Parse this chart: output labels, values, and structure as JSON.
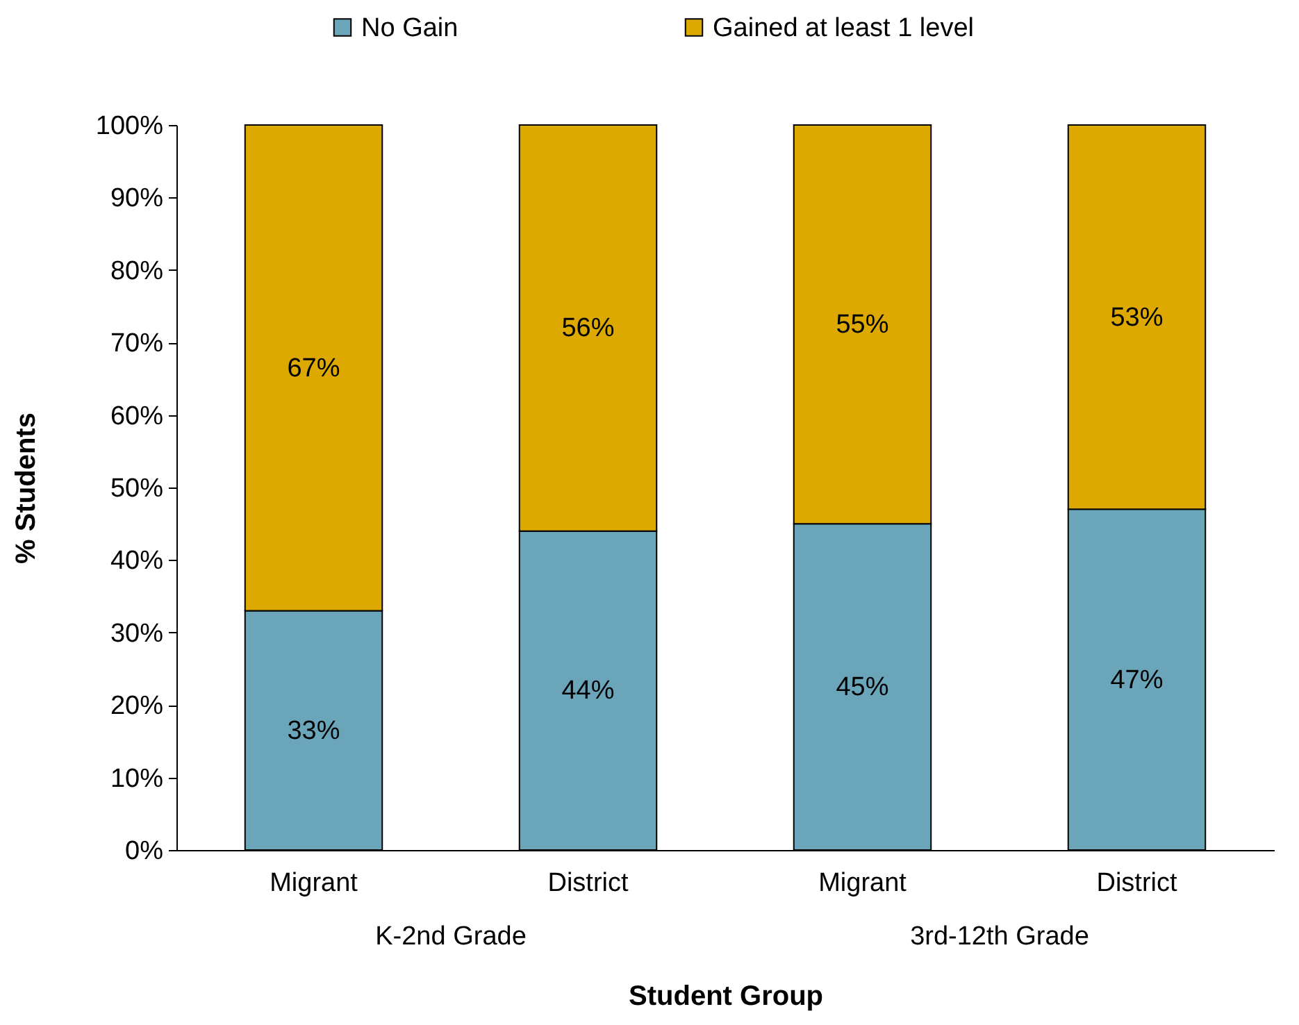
{
  "chart_data": {
    "type": "bar",
    "stacked": true,
    "xlabel": "Student Group",
    "ylabel": "%  Students",
    "categories": [
      "Migrant",
      "District",
      "Migrant",
      "District"
    ],
    "series": [
      {
        "name": "No Gain",
        "color": "#6aa5ba",
        "values": [
          33,
          44,
          45,
          47
        ],
        "value_labels": [
          "33%",
          "44%",
          "45%",
          "47%"
        ]
      },
      {
        "name": "Gained at least 1 level",
        "color": "#dda900",
        "values": [
          67,
          56,
          55,
          53
        ],
        "value_labels": [
          "67%",
          "56%",
          "55%",
          "53%"
        ]
      }
    ],
    "ylim": [
      0,
      100
    ],
    "yticks": [
      {
        "value": 0,
        "label": "0%"
      },
      {
        "value": 10,
        "label": "10%"
      },
      {
        "value": 20,
        "label": "20%"
      },
      {
        "value": 30,
        "label": "30%"
      },
      {
        "value": 40,
        "label": "40%"
      },
      {
        "value": 50,
        "label": "50%"
      },
      {
        "value": 60,
        "label": "60%"
      },
      {
        "value": 70,
        "label": "70%"
      },
      {
        "value": 80,
        "label": "80%"
      },
      {
        "value": 90,
        "label": "90%"
      },
      {
        "value": 100,
        "label": "100%"
      }
    ],
    "grid": false,
    "legend": "top",
    "annotations": [
      "K-2nd Grade",
      "3rd-12th  Grade"
    ]
  }
}
